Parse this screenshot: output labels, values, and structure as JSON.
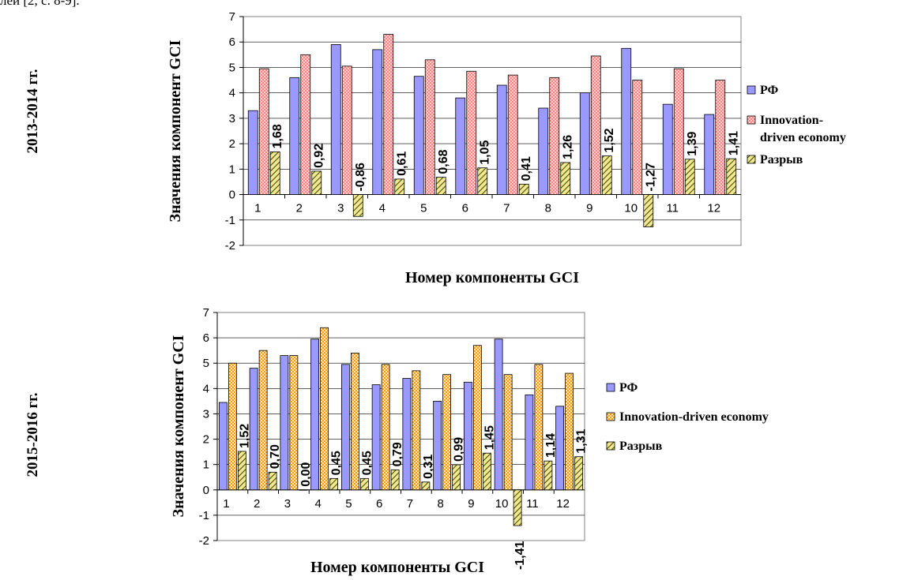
{
  "header_text": "лей [2, с. 8-9].",
  "periods": [
    "2013-2014 гг.",
    "2015-2016 гг."
  ],
  "chart_data": [
    {
      "type": "bar",
      "period": "2013-2014 гг.",
      "xlabel": "Номер компоненты GCI",
      "ylabel": "Значения компонент GCI",
      "ylim": [
        -2,
        7
      ],
      "y_ticks": [
        "-2",
        "-1",
        "0",
        "1",
        "2",
        "3",
        "4",
        "5",
        "6",
        "7"
      ],
      "grid": true,
      "legend_position": "right",
      "categories": [
        "1",
        "2",
        "3",
        "4",
        "5",
        "6",
        "7",
        "8",
        "9",
        "10",
        "11",
        "12"
      ],
      "series": [
        {
          "name": "РФ",
          "color": "#9999ff",
          "values": [
            3.3,
            4.6,
            5.9,
            5.7,
            4.65,
            3.8,
            4.3,
            3.4,
            4.0,
            5.75,
            3.55,
            3.15
          ]
        },
        {
          "name": "Innovation-driven economy",
          "color": "#ff9999",
          "values": [
            4.95,
            5.5,
            5.05,
            6.3,
            5.3,
            4.85,
            4.7,
            4.6,
            5.45,
            4.5,
            4.95,
            4.5
          ]
        },
        {
          "name": "Разрыв",
          "color": "#e8e070",
          "values": [
            1.68,
            0.92,
            -0.86,
            0.61,
            0.68,
            1.05,
            0.41,
            1.26,
            1.52,
            -1.27,
            1.39,
            1.41
          ]
        }
      ],
      "data_labels": [
        "1,68",
        "0,92",
        "-0,86",
        "0,61",
        "0,68",
        "1,05",
        "0,41",
        "1,26",
        "1,52",
        "-1,27",
        "1,39",
        "1,41"
      ],
      "legend_lines": [
        [
          "РФ"
        ],
        [
          "Innovation-",
          "driven economy"
        ],
        [
          "Разрыв"
        ]
      ]
    },
    {
      "type": "bar",
      "period": "2015-2016 гг.",
      "xlabel": "Номер компоненты GCI",
      "ylabel": "Значения компонент GCI",
      "ylim": [
        -2,
        7
      ],
      "y_ticks": [
        "-2",
        "-1",
        "0",
        "1",
        "2",
        "3",
        "4",
        "5",
        "6",
        "7"
      ],
      "grid": true,
      "legend_position": "right",
      "categories": [
        "1",
        "2",
        "3",
        "4",
        "5",
        "6",
        "7",
        "8",
        "9",
        "10",
        "11",
        "12"
      ],
      "series": [
        {
          "name": "РФ",
          "color": "#9999ff",
          "values": [
            3.45,
            4.8,
            5.3,
            5.95,
            4.95,
            4.15,
            4.4,
            3.5,
            4.25,
            5.95,
            3.75,
            3.3
          ]
        },
        {
          "name": "Innovation-driven economy",
          "color": "#ff9933",
          "values": [
            5.0,
            5.5,
            5.3,
            6.4,
            5.4,
            4.95,
            4.7,
            4.55,
            5.7,
            4.55,
            4.95,
            4.6
          ]
        },
        {
          "name": "Разрыв",
          "color": "#e8e070",
          "values": [
            1.52,
            0.7,
            0.0,
            0.45,
            0.45,
            0.79,
            0.31,
            0.99,
            1.45,
            -1.41,
            1.14,
            1.31
          ]
        }
      ],
      "data_labels": [
        "1,52",
        "0,70",
        "0,00",
        "0,45",
        "0,45",
        "0,79",
        "0,31",
        "0,99",
        "1,45",
        "-1,41",
        "1,14",
        "1,31"
      ],
      "legend_lines": [
        [
          "РФ"
        ],
        [
          "Innovation-driven economy"
        ],
        [
          "Разрыв"
        ]
      ]
    }
  ]
}
